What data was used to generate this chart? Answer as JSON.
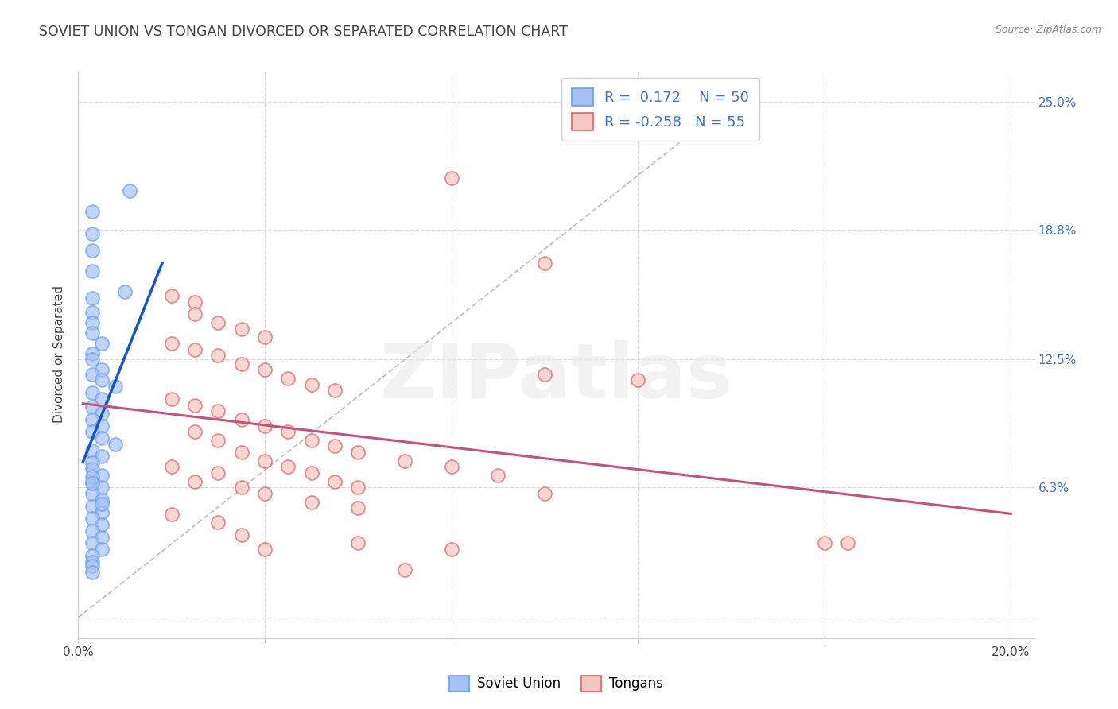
{
  "title": "SOVIET UNION VS TONGAN DIVORCED OR SEPARATED CORRELATION CHART",
  "source": "Source: ZipAtlas.com",
  "ylabel": "Divorced or Separated",
  "xlim": [
    0.0,
    0.205
  ],
  "ylim": [
    -0.01,
    0.265
  ],
  "xticks": [
    0.0,
    0.04,
    0.08,
    0.12,
    0.16,
    0.2
  ],
  "yticks": [
    0.0,
    0.063,
    0.125,
    0.188,
    0.25
  ],
  "ytick_right_labels": [
    "",
    "6.3%",
    "12.5%",
    "18.8%",
    "25.0%"
  ],
  "soviet_color": "#a4c2f4",
  "soviet_edge_color": "#6d9eeb",
  "tongan_color": "#f4c7c3",
  "tongan_edge_color": "#e06666",
  "soviet_line_color": "#1155cc",
  "tongan_line_color": "#c94f7c",
  "diag_color": "#b7b7b7",
  "background_color": "#ffffff",
  "grid_color": "#dddddd",
  "watermark": "ZIPatlas",
  "axis_label_color": "#4472c4",
  "text_color": "#434343",
  "soviet_points": [
    [
      0.003,
      0.197
    ],
    [
      0.011,
      0.207
    ],
    [
      0.003,
      0.186
    ],
    [
      0.003,
      0.178
    ],
    [
      0.003,
      0.168
    ],
    [
      0.01,
      0.158
    ],
    [
      0.003,
      0.155
    ],
    [
      0.003,
      0.148
    ],
    [
      0.003,
      0.143
    ],
    [
      0.003,
      0.138
    ],
    [
      0.005,
      0.133
    ],
    [
      0.003,
      0.128
    ],
    [
      0.003,
      0.125
    ],
    [
      0.005,
      0.12
    ],
    [
      0.003,
      0.118
    ],
    [
      0.005,
      0.115
    ],
    [
      0.008,
      0.112
    ],
    [
      0.003,
      0.109
    ],
    [
      0.005,
      0.106
    ],
    [
      0.003,
      0.102
    ],
    [
      0.005,
      0.099
    ],
    [
      0.003,
      0.096
    ],
    [
      0.005,
      0.093
    ],
    [
      0.003,
      0.09
    ],
    [
      0.005,
      0.087
    ],
    [
      0.008,
      0.084
    ],
    [
      0.003,
      0.081
    ],
    [
      0.005,
      0.078
    ],
    [
      0.003,
      0.075
    ],
    [
      0.003,
      0.072
    ],
    [
      0.005,
      0.069
    ],
    [
      0.003,
      0.066
    ],
    [
      0.005,
      0.063
    ],
    [
      0.003,
      0.06
    ],
    [
      0.005,
      0.057
    ],
    [
      0.003,
      0.054
    ],
    [
      0.005,
      0.051
    ],
    [
      0.003,
      0.048
    ],
    [
      0.005,
      0.045
    ],
    [
      0.003,
      0.042
    ],
    [
      0.005,
      0.039
    ],
    [
      0.003,
      0.036
    ],
    [
      0.005,
      0.033
    ],
    [
      0.003,
      0.03
    ],
    [
      0.003,
      0.027
    ],
    [
      0.003,
      0.068
    ],
    [
      0.003,
      0.065
    ],
    [
      0.005,
      0.055
    ],
    [
      0.003,
      0.025
    ],
    [
      0.003,
      0.022
    ]
  ],
  "tongan_points": [
    [
      0.08,
      0.213
    ],
    [
      0.1,
      0.172
    ],
    [
      0.02,
      0.156
    ],
    [
      0.025,
      0.153
    ],
    [
      0.025,
      0.147
    ],
    [
      0.03,
      0.143
    ],
    [
      0.035,
      0.14
    ],
    [
      0.04,
      0.136
    ],
    [
      0.02,
      0.133
    ],
    [
      0.025,
      0.13
    ],
    [
      0.03,
      0.127
    ],
    [
      0.035,
      0.123
    ],
    [
      0.04,
      0.12
    ],
    [
      0.045,
      0.116
    ],
    [
      0.05,
      0.113
    ],
    [
      0.055,
      0.11
    ],
    [
      0.02,
      0.106
    ],
    [
      0.025,
      0.103
    ],
    [
      0.03,
      0.1
    ],
    [
      0.035,
      0.096
    ],
    [
      0.04,
      0.093
    ],
    [
      0.045,
      0.09
    ],
    [
      0.05,
      0.086
    ],
    [
      0.055,
      0.083
    ],
    [
      0.06,
      0.08
    ],
    [
      0.07,
      0.076
    ],
    [
      0.08,
      0.073
    ],
    [
      0.09,
      0.069
    ],
    [
      0.1,
      0.118
    ],
    [
      0.12,
      0.115
    ],
    [
      0.02,
      0.073
    ],
    [
      0.03,
      0.07
    ],
    [
      0.025,
      0.066
    ],
    [
      0.035,
      0.063
    ],
    [
      0.06,
      0.063
    ],
    [
      0.1,
      0.06
    ],
    [
      0.04,
      0.06
    ],
    [
      0.05,
      0.056
    ],
    [
      0.06,
      0.053
    ],
    [
      0.02,
      0.05
    ],
    [
      0.03,
      0.046
    ],
    [
      0.035,
      0.04
    ],
    [
      0.06,
      0.036
    ],
    [
      0.04,
      0.033
    ],
    [
      0.08,
      0.033
    ],
    [
      0.16,
      0.036
    ],
    [
      0.165,
      0.036
    ],
    [
      0.07,
      0.023
    ],
    [
      0.025,
      0.09
    ],
    [
      0.03,
      0.086
    ],
    [
      0.035,
      0.08
    ],
    [
      0.04,
      0.076
    ],
    [
      0.045,
      0.073
    ],
    [
      0.05,
      0.07
    ],
    [
      0.055,
      0.066
    ]
  ]
}
